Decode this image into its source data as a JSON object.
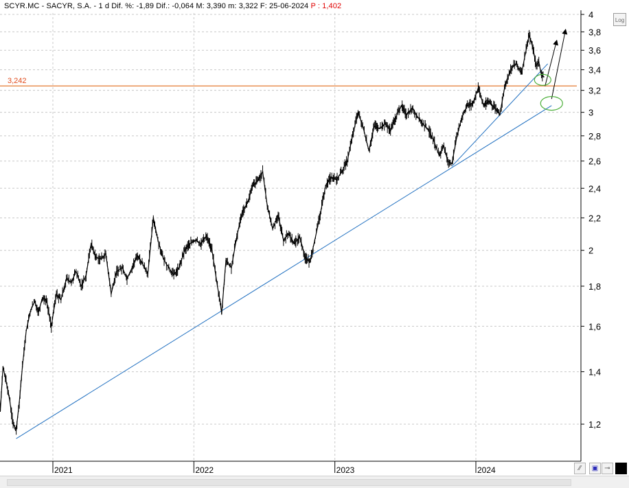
{
  "header": {
    "text_main": "SCYR.MC - SACYR, S.A. -  1 d  Dif. %: -1,89  Dif.: -0,064  M: 3,390  m: 3,322  F: 25-06-2024 ",
    "text_highlight": "P : 1,402"
  },
  "toolbar": {
    "log_label": "Log",
    "btn_zoom_icon": "zoom-icon",
    "btn_save_icon": "save-icon",
    "btn_pin_icon": "pin-icon",
    "btn_color_icon": "color-square-icon"
  },
  "colors": {
    "price": "#000000",
    "trendline": "#1f6fc0",
    "hline": "#e06a1a",
    "hline_label": "#e04a1a",
    "ellipse": "#4caf3a",
    "grid": "#c8c8c8"
  },
  "chart_data": {
    "type": "line",
    "scale": "log",
    "title": "SCYR.MC - SACYR, S.A.",
    "ylim": [
      1.1,
      4.0
    ],
    "y_ticks": [
      1.2,
      1.4,
      1.6,
      1.8,
      2,
      2.2,
      2.4,
      2.6,
      2.8,
      3,
      3.2,
      3.4,
      3.6,
      3.8,
      4
    ],
    "y_tick_labels": [
      "1,2",
      "1,4",
      "1,6",
      "1,8",
      "2",
      "2,2",
      "2,4",
      "2,6",
      "2,8",
      "3",
      "3,2",
      "3,4",
      "3,6",
      "3,8",
      "4"
    ],
    "x_labels": [
      "2021",
      "2022",
      "2023",
      "2024"
    ],
    "x_label_dates": [
      "2021-01-01",
      "2022-01-01",
      "2023-01-01",
      "2024-01-01"
    ],
    "grid": true,
    "horizontal_line": {
      "value": 3.242,
      "label": "3,242"
    },
    "series": [
      {
        "points": [
          [
            "2020-07-01",
            1.65
          ],
          [
            "2020-07-10",
            1.72
          ],
          [
            "2020-07-20",
            1.68
          ],
          [
            "2020-07-28",
            1.7
          ],
          [
            "2020-08-05",
            1.6
          ],
          [
            "2020-08-12",
            1.38
          ],
          [
            "2020-08-18",
            1.25
          ],
          [
            "2020-08-25",
            1.42
          ],
          [
            "2020-09-02",
            1.36
          ],
          [
            "2020-09-10",
            1.3
          ],
          [
            "2020-09-20",
            1.2
          ],
          [
            "2020-09-28",
            1.18
          ],
          [
            "2020-10-06",
            1.28
          ],
          [
            "2020-10-14",
            1.42
          ],
          [
            "2020-10-24",
            1.58
          ],
          [
            "2020-11-05",
            1.68
          ],
          [
            "2020-11-15",
            1.72
          ],
          [
            "2020-11-25",
            1.67
          ],
          [
            "2020-12-05",
            1.74
          ],
          [
            "2020-12-15",
            1.73
          ],
          [
            "2020-12-28",
            1.6
          ],
          [
            "2021-01-10",
            1.76
          ],
          [
            "2021-01-22",
            1.73
          ],
          [
            "2021-02-05",
            1.84
          ],
          [
            "2021-02-18",
            1.82
          ],
          [
            "2021-03-02",
            1.88
          ],
          [
            "2021-03-15",
            1.8
          ],
          [
            "2021-03-28",
            1.86
          ],
          [
            "2021-04-10",
            2.04
          ],
          [
            "2021-04-22",
            1.96
          ],
          [
            "2021-05-05",
            1.95
          ],
          [
            "2021-05-18",
            1.98
          ],
          [
            "2021-06-01",
            1.76
          ],
          [
            "2021-06-15",
            1.88
          ],
          [
            "2021-06-30",
            1.9
          ],
          [
            "2021-07-12",
            1.84
          ],
          [
            "2021-07-25",
            1.9
          ],
          [
            "2021-08-08",
            1.97
          ],
          [
            "2021-08-22",
            1.92
          ],
          [
            "2021-09-04",
            1.87
          ],
          [
            "2021-09-18",
            2.2
          ],
          [
            "2021-09-30",
            2.06
          ],
          [
            "2021-10-14",
            1.95
          ],
          [
            "2021-10-28",
            1.9
          ],
          [
            "2021-11-10",
            1.86
          ],
          [
            "2021-11-24",
            1.9
          ],
          [
            "2021-12-08",
            2.0
          ],
          [
            "2021-12-22",
            2.04
          ],
          [
            "2022-01-06",
            2.06
          ],
          [
            "2022-01-20",
            2.04
          ],
          [
            "2022-02-03",
            2.09
          ],
          [
            "2022-02-17",
            2.0
          ],
          [
            "2022-03-03",
            1.8
          ],
          [
            "2022-03-10",
            1.72
          ],
          [
            "2022-03-14",
            1.66
          ],
          [
            "2022-03-25",
            1.94
          ],
          [
            "2022-04-08",
            1.9
          ],
          [
            "2022-04-22",
            2.08
          ],
          [
            "2022-05-06",
            2.24
          ],
          [
            "2022-05-20",
            2.3
          ],
          [
            "2022-06-03",
            2.42
          ],
          [
            "2022-06-17",
            2.46
          ],
          [
            "2022-06-28",
            2.52
          ],
          [
            "2022-07-10",
            2.28
          ],
          [
            "2022-07-24",
            2.13
          ],
          [
            "2022-08-07",
            2.22
          ],
          [
            "2022-08-21",
            2.06
          ],
          [
            "2022-09-04",
            2.1
          ],
          [
            "2022-09-18",
            2.04
          ],
          [
            "2022-10-02",
            2.08
          ],
          [
            "2022-10-16",
            1.96
          ],
          [
            "2022-10-28",
            1.93
          ],
          [
            "2022-11-10",
            2.06
          ],
          [
            "2022-11-24",
            2.22
          ],
          [
            "2022-12-08",
            2.42
          ],
          [
            "2022-12-22",
            2.48
          ],
          [
            "2023-01-05",
            2.46
          ],
          [
            "2023-01-19",
            2.52
          ],
          [
            "2023-02-02",
            2.6
          ],
          [
            "2023-02-16",
            2.8
          ],
          [
            "2023-03-02",
            3.0
          ],
          [
            "2023-03-16",
            2.86
          ],
          [
            "2023-03-30",
            2.68
          ],
          [
            "2023-04-13",
            2.88
          ],
          [
            "2023-04-27",
            2.86
          ],
          [
            "2023-05-11",
            2.9
          ],
          [
            "2023-05-25",
            2.84
          ],
          [
            "2023-06-08",
            2.96
          ],
          [
            "2023-06-22",
            3.06
          ],
          [
            "2023-07-06",
            2.98
          ],
          [
            "2023-07-20",
            3.04
          ],
          [
            "2023-08-03",
            2.96
          ],
          [
            "2023-08-17",
            2.9
          ],
          [
            "2023-08-31",
            2.85
          ],
          [
            "2023-09-14",
            2.76
          ],
          [
            "2023-09-28",
            2.64
          ],
          [
            "2023-10-10",
            2.72
          ],
          [
            "2023-10-20",
            2.6
          ],
          [
            "2023-10-31",
            2.58
          ],
          [
            "2023-11-12",
            2.78
          ],
          [
            "2023-11-26",
            2.96
          ],
          [
            "2023-12-10",
            3.06
          ],
          [
            "2023-12-24",
            3.08
          ],
          [
            "2024-01-07",
            3.22
          ],
          [
            "2024-01-21",
            3.06
          ],
          [
            "2024-02-04",
            3.1
          ],
          [
            "2024-02-18",
            3.04
          ],
          [
            "2024-03-03",
            2.98
          ],
          [
            "2024-03-17",
            3.26
          ],
          [
            "2024-03-31",
            3.4
          ],
          [
            "2024-04-14",
            3.46
          ],
          [
            "2024-04-28",
            3.36
          ],
          [
            "2024-05-08",
            3.56
          ],
          [
            "2024-05-18",
            3.76
          ],
          [
            "2024-05-28",
            3.62
          ],
          [
            "2024-06-05",
            3.44
          ],
          [
            "2024-06-12",
            3.48
          ],
          [
            "2024-06-19",
            3.34
          ],
          [
            "2024-06-25",
            3.33
          ]
        ]
      }
    ],
    "trendlines": [
      {
        "from": [
          "2020-09-28",
          1.15
        ],
        "to": [
          "2024-07-15",
          3.06
        ]
      },
      {
        "from": [
          "2023-10-31",
          2.56
        ],
        "to": [
          "2024-07-05",
          3.46
        ]
      }
    ],
    "arrows": [
      {
        "from": [
          "2024-06-28",
          3.24
        ],
        "to": [
          "2024-07-28",
          3.7
        ]
      },
      {
        "from": [
          "2024-07-15",
          3.12
        ],
        "to": [
          "2024-08-20",
          3.82
        ]
      }
    ],
    "ellipses": [
      {
        "center": [
          "2024-06-22",
          3.3
        ]
      },
      {
        "center": [
          "2024-07-15",
          3.08
        ]
      }
    ]
  }
}
